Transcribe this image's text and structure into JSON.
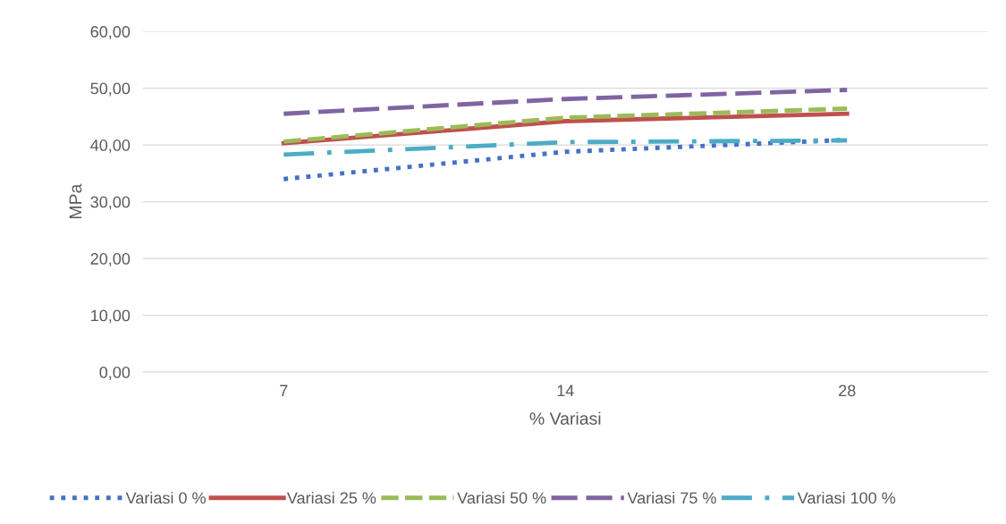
{
  "chart_data": {
    "type": "line",
    "xlabel": "% Variasi",
    "ylabel": "MPa",
    "categories": [
      "7",
      "14",
      "28"
    ],
    "series": [
      {
        "name": "Variasi 0 %",
        "color": "#4472c4",
        "line_style": "dotted",
        "values": [
          34.0,
          38.8,
          40.9
        ]
      },
      {
        "name": "Variasi 25 %",
        "color": "#c0504d",
        "line_style": "solid",
        "values": [
          40.3,
          44.2,
          45.5
        ]
      },
      {
        "name": "Variasi 50 %",
        "color": "#9bbb59",
        "line_style": "dashed",
        "values": [
          40.6,
          44.8,
          46.4
        ]
      },
      {
        "name": "Variasi 75 %",
        "color": "#8064a2",
        "line_style": "longdash",
        "values": [
          45.5,
          48.1,
          49.7
        ]
      },
      {
        "name": "Variasi 100 %",
        "color": "#4bacc6",
        "line_style": "dashdot",
        "values": [
          38.3,
          40.5,
          40.8
        ]
      }
    ],
    "ylim": [
      0,
      60
    ],
    "yticks": [
      {
        "value": 0,
        "label": "0,00"
      },
      {
        "value": 10,
        "label": "10,00"
      },
      {
        "value": 20,
        "label": "20,00"
      },
      {
        "value": 30,
        "label": "30,00"
      },
      {
        "value": 40,
        "label": "40,00"
      },
      {
        "value": 50,
        "label": "50,00"
      },
      {
        "value": 60,
        "label": "60,00"
      }
    ],
    "grid": "y",
    "legend": "bottom",
    "marker": "none"
  }
}
